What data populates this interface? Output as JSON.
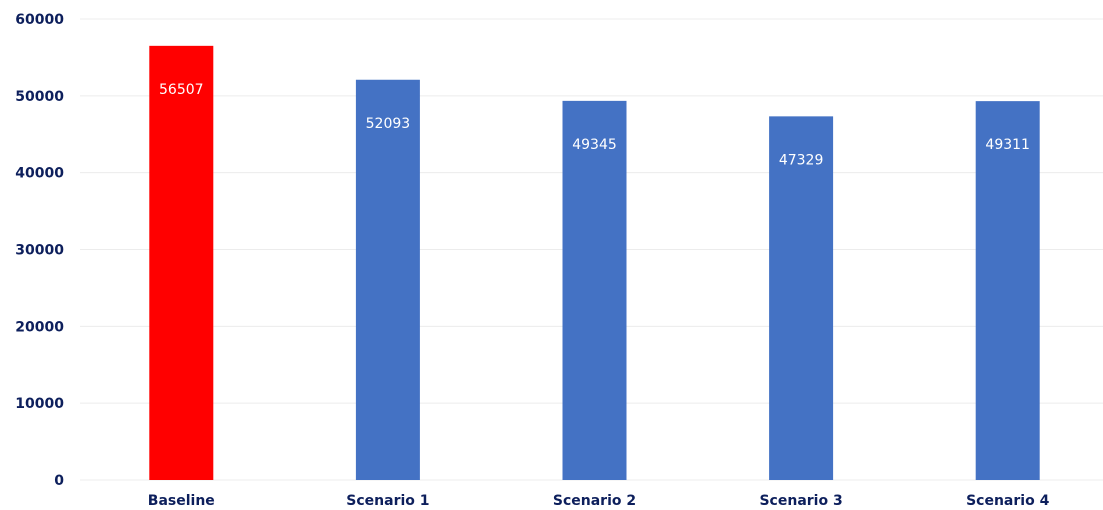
{
  "chart_data": {
    "type": "bar",
    "title": "",
    "categories": [
      "Baseline",
      "Scenario 1",
      "Scenario 2",
      "Scenario 3",
      "Scenario 4"
    ],
    "values": [
      56507,
      52093,
      49345,
      47329,
      49311
    ],
    "data_labels": [
      "56507",
      "52093",
      "49345",
      "47329",
      "49311"
    ],
    "bar_colors": [
      "#ff0000",
      "#4472c4",
      "#4472c4",
      "#4472c4",
      "#4472c4"
    ],
    "ylim": [
      0,
      60000
    ],
    "yticks": [
      "0",
      "10000",
      "20000",
      "30000",
      "40000",
      "50000",
      "60000"
    ],
    "xlabel": "",
    "ylabel": "",
    "grid": true,
    "legend": "none"
  }
}
